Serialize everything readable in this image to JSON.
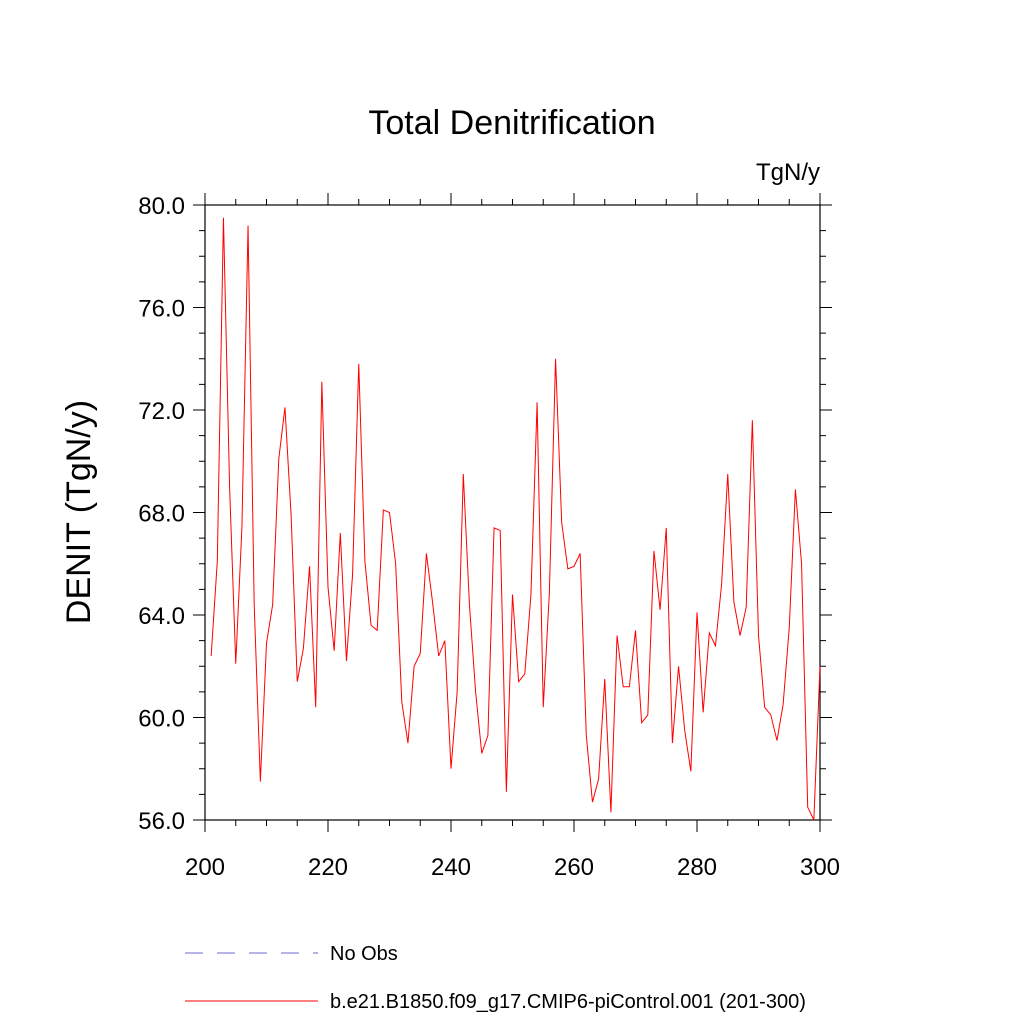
{
  "chart_data": {
    "type": "line",
    "title": "Total Denitrification",
    "units": "TgN/y",
    "xlabel": "",
    "ylabel": "DENIT  (TgN/y)",
    "xlim": [
      200,
      300
    ],
    "ylim": [
      56,
      80
    ],
    "x_ticks": [
      200,
      220,
      240,
      260,
      280,
      300
    ],
    "x_tick_labels": [
      "200",
      "220",
      "240",
      "260",
      "280",
      "300"
    ],
    "y_ticks": [
      56,
      60,
      64,
      68,
      72,
      76,
      80
    ],
    "y_tick_labels": [
      "56.0",
      "60.0",
      "64.0",
      "68.0",
      "72.0",
      "76.0",
      "80.0"
    ],
    "legend": [
      {
        "label": "No Obs",
        "style": "dashed",
        "color": "#6a6acd"
      },
      {
        "label": "b.e21.B1850.f09_g17.CMIP6-piControl.001 (201-300)",
        "style": "solid",
        "color": "#ff0000"
      }
    ],
    "series": [
      {
        "name": "b.e21.B1850.f09_g17.CMIP6-piControl.001 (201-300)",
        "color": "#ff0000",
        "x": [
          201,
          202,
          203,
          204,
          205,
          206,
          207,
          208,
          209,
          210,
          211,
          212,
          213,
          214,
          215,
          216,
          217,
          218,
          219,
          220,
          221,
          222,
          223,
          224,
          225,
          226,
          227,
          228,
          229,
          230,
          231,
          232,
          233,
          234,
          235,
          236,
          237,
          238,
          239,
          240,
          241,
          242,
          243,
          244,
          245,
          246,
          247,
          248,
          249,
          250,
          251,
          252,
          253,
          254,
          255,
          256,
          257,
          258,
          259,
          260,
          261,
          262,
          263,
          264,
          265,
          266,
          267,
          268,
          269,
          270,
          271,
          272,
          273,
          274,
          275,
          276,
          277,
          278,
          279,
          280,
          281,
          282,
          283,
          284,
          285,
          286,
          287,
          288,
          289,
          290,
          291,
          292,
          293,
          294,
          295,
          296,
          297,
          298,
          299,
          300
        ],
        "values": [
          62.4,
          66.1,
          79.5,
          69.0,
          62.1,
          67.4,
          79.2,
          64.4,
          57.5,
          62.9,
          64.4,
          70.1,
          72.1,
          67.9,
          61.4,
          62.7,
          65.9,
          60.4,
          73.1,
          65.1,
          62.6,
          67.2,
          62.2,
          65.6,
          73.8,
          66.1,
          63.6,
          63.4,
          68.1,
          68.0,
          66.0,
          60.6,
          59.0,
          62.0,
          62.5,
          66.4,
          64.5,
          62.4,
          63.0,
          58.0,
          61.0,
          69.5,
          64.4,
          61.0,
          58.6,
          59.3,
          67.4,
          67.3,
          57.1,
          64.8,
          61.4,
          61.7,
          64.8,
          72.3,
          60.4,
          64.9,
          74.0,
          67.6,
          65.8,
          65.9,
          66.4,
          59.3,
          56.7,
          57.6,
          61.5,
          56.3,
          63.2,
          61.2,
          61.2,
          63.4,
          59.8,
          60.1,
          66.5,
          64.2,
          67.4,
          59.0,
          62.0,
          59.5,
          57.9,
          64.1,
          60.2,
          63.3,
          62.8,
          65.2,
          69.5,
          64.5,
          63.2,
          64.3,
          71.6,
          63.2,
          60.4,
          60.1,
          59.1,
          60.5,
          63.5,
          68.9,
          66.0,
          56.5,
          56.0,
          62.0
        ]
      }
    ]
  }
}
